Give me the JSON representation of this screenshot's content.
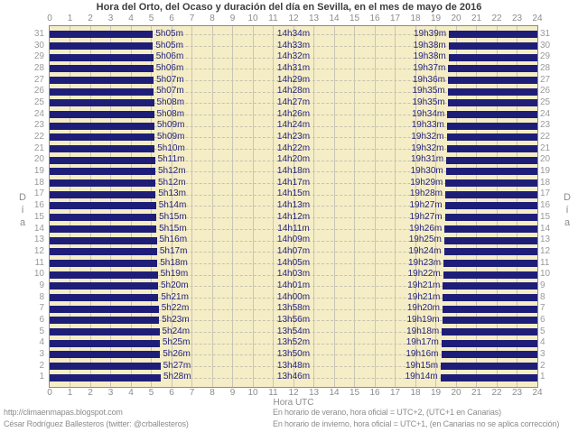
{
  "title": "Hora del Orto, del Ocaso y duración del día en Sevilla, en el mes de mayo de 2016",
  "axis": {
    "x_ticks": [
      0,
      1,
      2,
      3,
      4,
      5,
      6,
      7,
      8,
      9,
      10,
      11,
      12,
      13,
      14,
      15,
      16,
      17,
      18,
      19,
      20,
      21,
      22,
      23,
      24
    ],
    "x_label": "Hora UTC",
    "y_label": "Día",
    "y_label_vertical": [
      "D",
      "í",
      "a"
    ]
  },
  "chart_data": {
    "type": "bar",
    "variant": "horizontal-day-night-span",
    "title": "Hora del Orto, del Ocaso y duración del día en Sevilla, en el mes de mayo de 2016",
    "xlabel": "Hora UTC",
    "ylabel": "Día",
    "xlim": [
      0,
      24
    ],
    "x_tick_step": 1,
    "grid": true,
    "night_color": "#1e1e78",
    "day_color": "#f5edc6",
    "rows": [
      {
        "day": 31,
        "orto": "5h05m",
        "duracion": "14h34m",
        "ocaso": "19h39m"
      },
      {
        "day": 30,
        "orto": "5h05m",
        "duracion": "14h33m",
        "ocaso": "19h38m"
      },
      {
        "day": 29,
        "orto": "5h06m",
        "duracion": "14h32m",
        "ocaso": "19h38m"
      },
      {
        "day": 28,
        "orto": "5h06m",
        "duracion": "14h31m",
        "ocaso": "19h37m"
      },
      {
        "day": 27,
        "orto": "5h07m",
        "duracion": "14h29m",
        "ocaso": "19h36m"
      },
      {
        "day": 26,
        "orto": "5h07m",
        "duracion": "14h28m",
        "ocaso": "19h35m"
      },
      {
        "day": 25,
        "orto": "5h08m",
        "duracion": "14h27m",
        "ocaso": "19h35m"
      },
      {
        "day": 24,
        "orto": "5h08m",
        "duracion": "14h26m",
        "ocaso": "19h34m"
      },
      {
        "day": 23,
        "orto": "5h09m",
        "duracion": "14h24m",
        "ocaso": "19h33m"
      },
      {
        "day": 22,
        "orto": "5h09m",
        "duracion": "14h23m",
        "ocaso": "19h32m"
      },
      {
        "day": 21,
        "orto": "5h10m",
        "duracion": "14h22m",
        "ocaso": "19h32m"
      },
      {
        "day": 20,
        "orto": "5h11m",
        "duracion": "14h20m",
        "ocaso": "19h31m"
      },
      {
        "day": 19,
        "orto": "5h12m",
        "duracion": "14h18m",
        "ocaso": "19h30m"
      },
      {
        "day": 18,
        "orto": "5h12m",
        "duracion": "14h17m",
        "ocaso": "19h29m"
      },
      {
        "day": 17,
        "orto": "5h13m",
        "duracion": "14h15m",
        "ocaso": "19h28m"
      },
      {
        "day": 16,
        "orto": "5h14m",
        "duracion": "14h13m",
        "ocaso": "19h27m"
      },
      {
        "day": 15,
        "orto": "5h15m",
        "duracion": "14h12m",
        "ocaso": "19h27m"
      },
      {
        "day": 14,
        "orto": "5h15m",
        "duracion": "14h11m",
        "ocaso": "19h26m"
      },
      {
        "day": 13,
        "orto": "5h16m",
        "duracion": "14h09m",
        "ocaso": "19h25m"
      },
      {
        "day": 12,
        "orto": "5h17m",
        "duracion": "14h07m",
        "ocaso": "19h24m"
      },
      {
        "day": 11,
        "orto": "5h18m",
        "duracion": "14h05m",
        "ocaso": "19h23m"
      },
      {
        "day": 10,
        "orto": "5h19m",
        "duracion": "14h03m",
        "ocaso": "19h22m"
      },
      {
        "day": 9,
        "orto": "5h20m",
        "duracion": "14h01m",
        "ocaso": "19h21m"
      },
      {
        "day": 8,
        "orto": "5h21m",
        "duracion": "14h00m",
        "ocaso": "19h21m"
      },
      {
        "day": 7,
        "orto": "5h22m",
        "duracion": "13h58m",
        "ocaso": "19h20m"
      },
      {
        "day": 6,
        "orto": "5h23m",
        "duracion": "13h56m",
        "ocaso": "19h19m"
      },
      {
        "day": 5,
        "orto": "5h24m",
        "duracion": "13h54m",
        "ocaso": "19h18m"
      },
      {
        "day": 4,
        "orto": "5h25m",
        "duracion": "13h52m",
        "ocaso": "19h17m"
      },
      {
        "day": 3,
        "orto": "5h26m",
        "duracion": "13h50m",
        "ocaso": "19h16m"
      },
      {
        "day": 2,
        "orto": "5h27m",
        "duracion": "13h48m",
        "ocaso": "19h15m"
      },
      {
        "day": 1,
        "orto": "5h28m",
        "duracion": "13h46m",
        "ocaso": "19h14m"
      }
    ]
  },
  "footer": {
    "site": "http://climaenmapas.blogspot.com",
    "author": "César Rodríguez Ballesteros (twitter: @crballesteros)",
    "note_summer": "En horario de verano, hora oficial = UTC+2, (UTC+1 en Canarias)",
    "note_winter": "En horario de invierno, hora oficial = UTC+1, (en Canarias no se aplica corrección)"
  },
  "colors": {
    "page_bg": "#ffffff",
    "plot_bg": "#f5edc6",
    "bar": "#1e1e78",
    "time_label": "#26267e",
    "axis_text": "#8c8c8c",
    "day_number": "#9a9a9a",
    "grid": "#c9c5b4",
    "row_dash": "#c6c2ae",
    "border": "#8a8a8a",
    "title_text": "#3d3d3d"
  }
}
